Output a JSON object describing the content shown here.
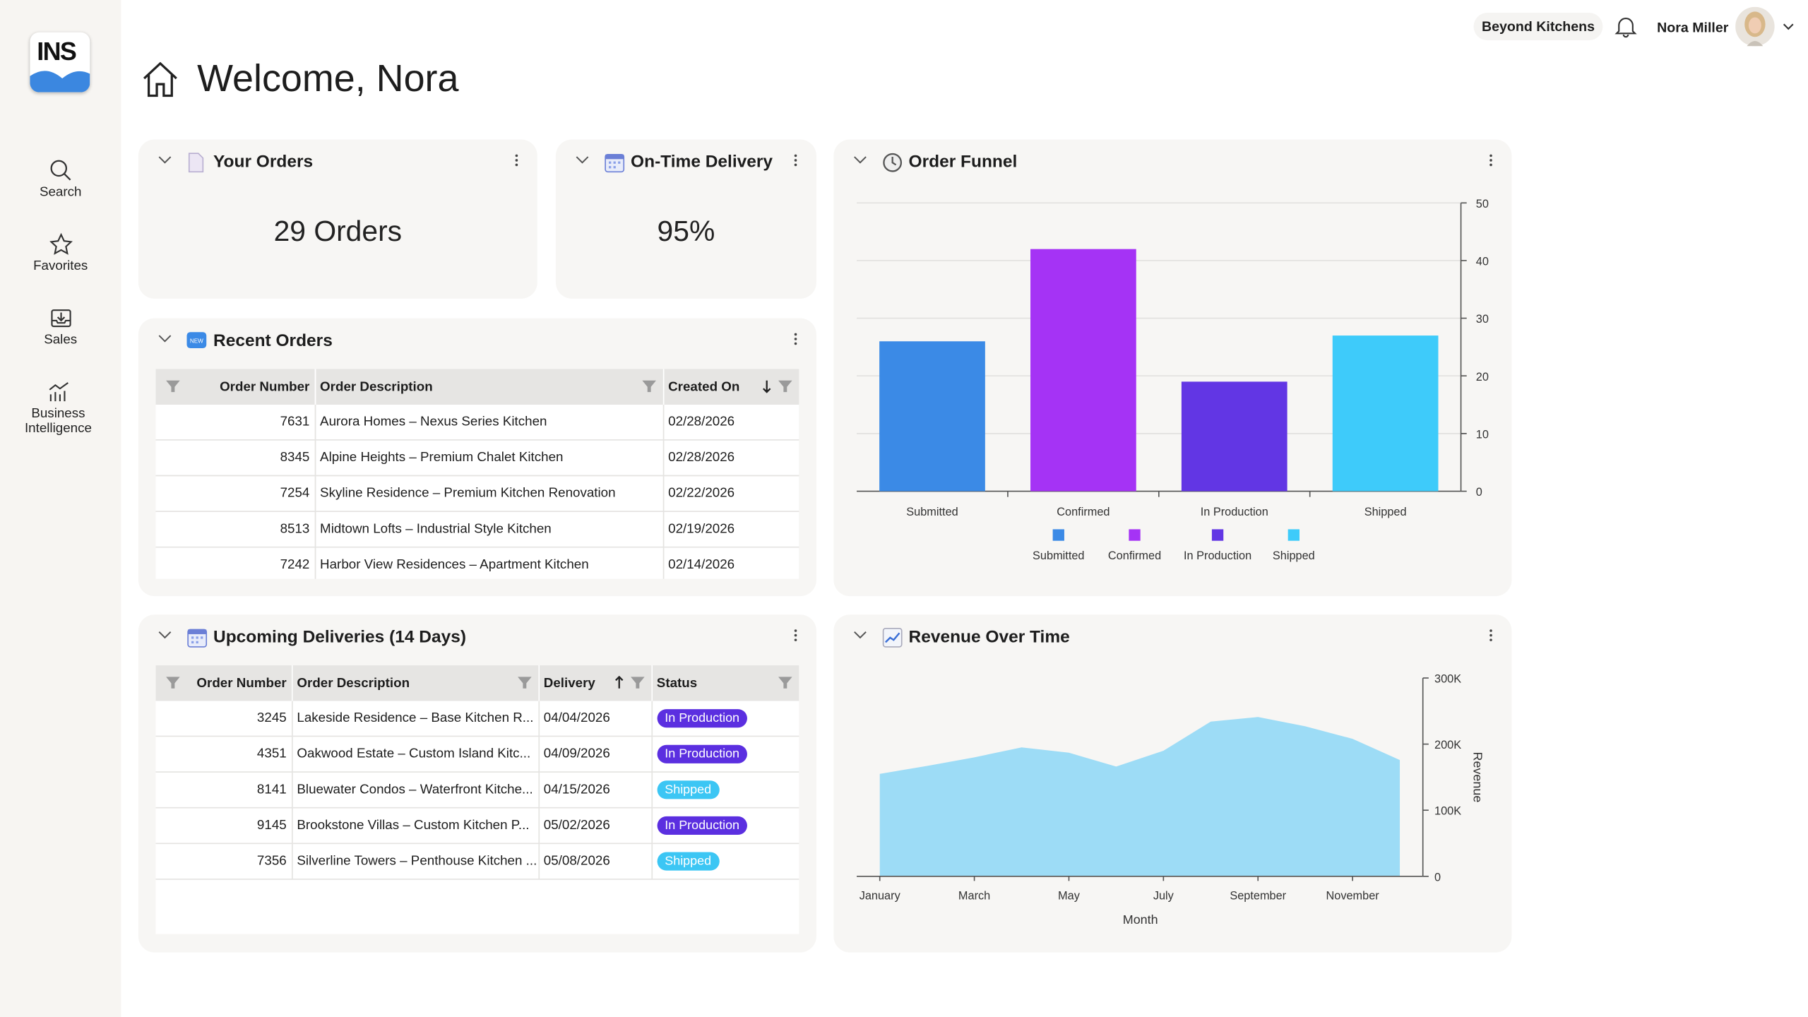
{
  "logo": "INS",
  "header": {
    "account": "Beyond Kitchens",
    "user": "Nora Miller"
  },
  "greeting": "Welcome, Nora",
  "nav": [
    "Search",
    "Favorites",
    "Sales",
    "Business Intelligence"
  ],
  "widgets": {
    "your_orders": {
      "title": "Your Orders",
      "value": "29 Orders"
    },
    "on_time": {
      "title": "On-Time Delivery",
      "value": "95%"
    }
  },
  "recent_orders": {
    "title": "Recent Orders",
    "columns": [
      "Order Number",
      "Order Description",
      "Created On"
    ],
    "rows": [
      [
        "7631",
        "Aurora Homes – Nexus Series Kitchen",
        "02/28/2026"
      ],
      [
        "8345",
        "Alpine Heights – Premium Chalet Kitchen",
        "02/28/2026"
      ],
      [
        "7254",
        "Skyline Residence – Premium Kitchen Renovation",
        "02/22/2026"
      ],
      [
        "8513",
        "Midtown Lofts – Industrial Style Kitchen",
        "02/19/2026"
      ],
      [
        "7242",
        "Harbor View Residences – Apartment Kitchen",
        "02/14/2026"
      ]
    ]
  },
  "upcoming_deliveries": {
    "title": "Upcoming Deliveries (14 Days)",
    "columns": [
      "Order Number",
      "Order Description",
      "Delivery",
      "Status"
    ],
    "rows": [
      [
        "3245",
        "Lakeside Residence – Base Kitchen R...",
        "04/04/2026",
        {
          "label": "In Production",
          "color": "#5b2fe0"
        }
      ],
      [
        "4351",
        "Oakwood Estate – Custom Island Kitc...",
        "04/09/2026",
        {
          "label": "In Production",
          "color": "#5b2fe0"
        }
      ],
      [
        "8141",
        "Bluewater Condos – Waterfront Kitche...",
        "04/15/2026",
        {
          "label": "Shipped",
          "color": "#3cc6f4"
        }
      ],
      [
        "9145",
        "Brookstone Villas – Custom Kitchen P...",
        "05/02/2026",
        {
          "label": "In Production",
          "color": "#5b2fe0"
        }
      ],
      [
        "7356",
        "Silverline Towers – Penthouse Kitchen ...",
        "05/08/2026",
        {
          "label": "Shipped",
          "color": "#3cc6f4"
        }
      ]
    ]
  },
  "chart_data": [
    {
      "type": "bar",
      "title": "Order Funnel",
      "categories": [
        "Submitted",
        "Confirmed",
        "In Production",
        "Shipped"
      ],
      "values": [
        26,
        42,
        19,
        27
      ],
      "colors": [
        "#3b8ae6",
        "#a533f5",
        "#6236e4",
        "#3ecbfa"
      ],
      "ylim": [
        0,
        50
      ],
      "yticks": [
        0,
        10,
        20,
        30,
        40,
        50
      ],
      "grid": true,
      "legend": "bottom"
    },
    {
      "type": "area",
      "title": "Revenue Over Time",
      "categories": [
        "January",
        null,
        "March",
        null,
        "May",
        null,
        "July",
        null,
        "September",
        null,
        "November",
        null
      ],
      "values": [
        155000,
        167000,
        180000,
        195000,
        187000,
        166000,
        190000,
        234000,
        241000,
        227000,
        208000,
        176000
      ],
      "color": "#9ddcf6",
      "x_label": "Month",
      "y_label": "Revenue",
      "ylim": [
        0,
        300000
      ],
      "yticks": [
        0,
        {
          "value": 100000,
          "label": "100K"
        },
        {
          "value": 200000,
          "label": "200K"
        },
        {
          "value": 300000,
          "label": "300K"
        }
      ],
      "grid": false
    }
  ]
}
